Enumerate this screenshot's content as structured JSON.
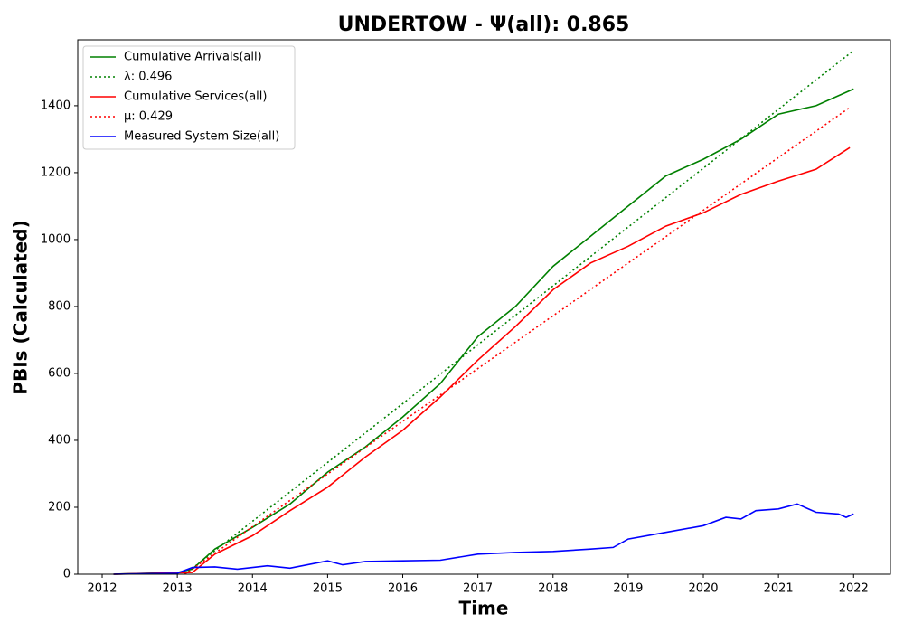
{
  "chart_data": {
    "type": "line",
    "title": "UNDERTOW -  Ψ(all): 0.865",
    "x_label": "Time",
    "y_label": "PBIs (Calculated)",
    "xlim": [
      2011.675,
      2022.49
    ],
    "ylim": [
      0,
      1597
    ],
    "xticks": [
      2012,
      2013,
      2014,
      2015,
      2016,
      2017,
      2018,
      2019,
      2020,
      2021,
      2022
    ],
    "yticks": [
      0,
      200,
      400,
      600,
      800,
      1000,
      1200,
      1400
    ],
    "legend": "upper left",
    "series": [
      {
        "name": "Cumulative Arrivals(all)",
        "color": "#008000",
        "linestyle": "solid",
        "x": [
          2012.15,
          2013.0,
          2013.2,
          2013.5,
          2014.0,
          2014.5,
          2015.0,
          2015.5,
          2016.0,
          2016.5,
          2017.0,
          2017.5,
          2018.0,
          2018.5,
          2019.0,
          2019.5,
          2020.0,
          2020.5,
          2021.0,
          2021.5,
          2022.0
        ],
        "values": [
          0,
          5,
          15,
          75,
          140,
          210,
          305,
          380,
          470,
          570,
          710,
          800,
          920,
          1010,
          1100,
          1190,
          1240,
          1300,
          1375,
          1400,
          1450
        ]
      },
      {
        "name": "λ: 0.496",
        "color": "#008000",
        "linestyle": "dotted",
        "x": [
          2013.1,
          2022.0
        ],
        "values": [
          0,
          1565
        ]
      },
      {
        "name": "Cumulative Services(all)",
        "color": "#ff0000",
        "linestyle": "solid",
        "x": [
          2012.15,
          2013.2,
          2013.5,
          2014.0,
          2014.5,
          2015.0,
          2015.5,
          2016.0,
          2016.5,
          2017.0,
          2017.5,
          2018.0,
          2018.5,
          2019.0,
          2019.5,
          2020.0,
          2020.5,
          2021.0,
          2021.5,
          2021.95
        ],
        "values": [
          0,
          5,
          60,
          115,
          190,
          260,
          350,
          430,
          530,
          640,
          740,
          850,
          930,
          980,
          1040,
          1080,
          1135,
          1175,
          1210,
          1275
        ]
      },
      {
        "name": "μ: 0.429",
        "color": "#ff0000",
        "linestyle": "dotted",
        "x": [
          2013.1,
          2021.95
        ],
        "values": [
          0,
          1395
        ]
      },
      {
        "name": "Measured System Size(all)",
        "color": "#0000ff",
        "linestyle": "solid",
        "x": [
          2012.15,
          2013.0,
          2013.2,
          2013.5,
          2013.8,
          2014.2,
          2014.5,
          2015.0,
          2015.2,
          2015.5,
          2016.0,
          2016.5,
          2017.0,
          2017.5,
          2018.0,
          2018.5,
          2018.8,
          2019.0,
          2019.5,
          2020.0,
          2020.3,
          2020.5,
          2020.7,
          2021.0,
          2021.25,
          2021.5,
          2021.8,
          2021.9,
          2022.0
        ],
        "values": [
          0,
          3,
          20,
          22,
          15,
          25,
          18,
          40,
          28,
          38,
          40,
          42,
          60,
          65,
          68,
          75,
          80,
          105,
          125,
          145,
          170,
          165,
          190,
          195,
          210,
          185,
          180,
          170,
          180
        ]
      }
    ]
  }
}
